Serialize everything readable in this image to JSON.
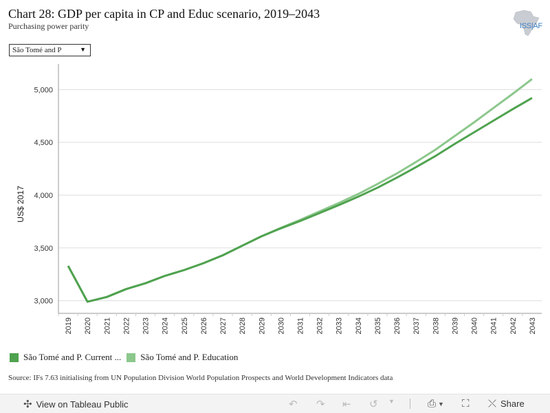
{
  "title": "Chart 28: GDP per capita in CP and Educ scenario, 2019–2043",
  "subtitle": "Purchasing power parity",
  "logo": {
    "text": "ISS|AF",
    "icon": "africa-map-logo"
  },
  "filter": {
    "selected": "São Tomé and P",
    "icon": "triangle-down-icon"
  },
  "source": "Source: IFs 7.63 initialising from UN Population Division World Population Prospects and World Development Indicators data",
  "colors": {
    "current": "#4fa24f",
    "education": "#8cc78c",
    "grid": "#dddddd",
    "axis": "#999999"
  },
  "toolbar": {
    "view_label": "View on Tableau Public",
    "share_label": "Share",
    "icons": [
      "tableau-logo-icon",
      "undo-icon",
      "redo-icon",
      "revert-icon",
      "refresh-icon",
      "dropdown-icon",
      "download-icon",
      "fullscreen-icon",
      "share-icon"
    ]
  },
  "chart_data": {
    "type": "line",
    "ylabel": "US$ 2017",
    "xlabel": "",
    "ylim": [
      2880,
      5230
    ],
    "yticks": [
      3000,
      3500,
      4000,
      4500,
      5000
    ],
    "ytick_labels": [
      "3,000",
      "3,500",
      "4,000",
      "4,500",
      "5,000"
    ],
    "grid": true,
    "legend_position": "bottom-left",
    "x": [
      "2019",
      "2020",
      "2021",
      "2022",
      "2023",
      "2024",
      "2025",
      "2026",
      "2027",
      "2028",
      "2029",
      "2030",
      "2031",
      "2032",
      "2033",
      "2034",
      "2035",
      "2036",
      "2037",
      "2038",
      "2039",
      "2040",
      "2041",
      "2042",
      "2043"
    ],
    "series": [
      {
        "name": "São Tomé and P. Current ...",
        "values": [
          3330,
          2990,
          3035,
          3110,
          3165,
          3235,
          3290,
          3355,
          3430,
          3520,
          3610,
          3685,
          3755,
          3830,
          3905,
          3985,
          4070,
          4165,
          4265,
          4370,
          4485,
          4595,
          4705,
          4815,
          4920
        ]
      },
      {
        "name": "São Tomé and P. Education",
        "values": [
          3330,
          2990,
          3035,
          3110,
          3165,
          3235,
          3290,
          3355,
          3430,
          3520,
          3610,
          3690,
          3765,
          3845,
          3925,
          4010,
          4105,
          4205,
          4315,
          4430,
          4560,
          4690,
          4825,
          4960,
          5100
        ]
      }
    ]
  }
}
